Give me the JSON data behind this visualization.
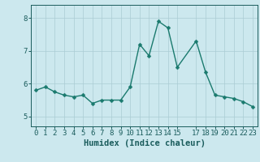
{
  "x": [
    0,
    1,
    2,
    3,
    4,
    5,
    6,
    7,
    8,
    9,
    10,
    11,
    12,
    13,
    14,
    15,
    17,
    18,
    19,
    20,
    21,
    22,
    23
  ],
  "y": [
    5.8,
    5.9,
    5.75,
    5.65,
    5.6,
    5.65,
    5.4,
    5.5,
    5.5,
    5.5,
    5.9,
    7.2,
    6.85,
    7.9,
    7.7,
    6.5,
    7.3,
    6.35,
    5.65,
    5.6,
    5.55,
    5.45,
    5.3
  ],
  "xticks": [
    0,
    1,
    2,
    3,
    4,
    5,
    6,
    7,
    8,
    9,
    10,
    11,
    12,
    13,
    14,
    15,
    17,
    18,
    19,
    20,
    21,
    22,
    23
  ],
  "xlabel": "Humidex (Indice chaleur)",
  "yticks": [
    5,
    6,
    7,
    8
  ],
  "ylim": [
    4.7,
    8.4
  ],
  "xlim": [
    -0.5,
    23.5
  ],
  "bg_color": "#cce8ee",
  "line_color": "#1a7a6e",
  "marker_color": "#1a7a6e",
  "grid_color": "#aaccd4",
  "tick_label_color": "#1a5c5c",
  "xlabel_color": "#1a5c5c",
  "xlabel_fontsize": 7.5,
  "tick_fontsize": 6.5,
  "line_width": 1.0,
  "marker_size": 2.5
}
